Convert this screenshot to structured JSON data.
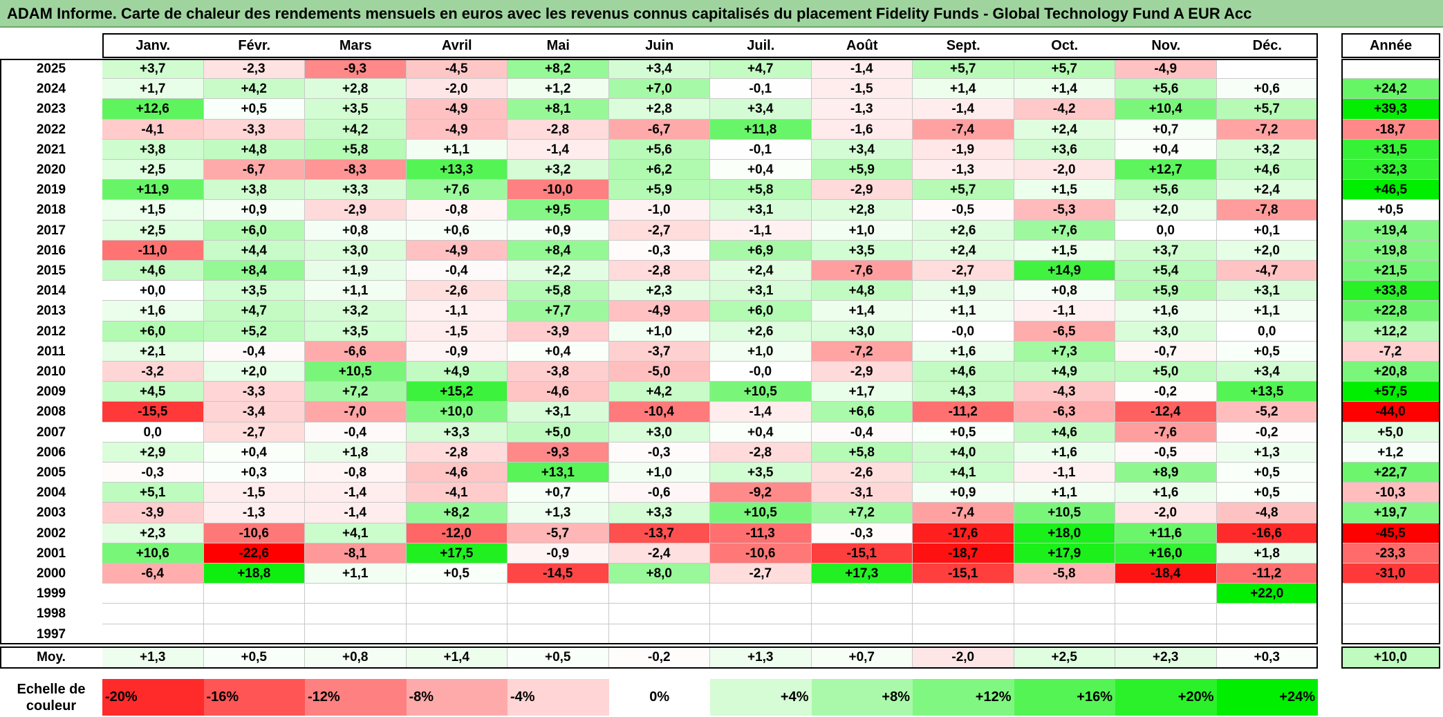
{
  "title": "ADAM Informe. Carte de chaleur des rendements mensuels en euros avec les revenus connus capitalisés du placement Fidelity Funds - Global Technology Fund A EUR Acc",
  "chart_data": {
    "type": "heatmap",
    "months": [
      "Janv.",
      "Févr.",
      "Mars",
      "Avril",
      "Mai",
      "Juin",
      "Juil.",
      "Août",
      "Sept.",
      "Oct.",
      "Nov.",
      "Déc."
    ],
    "year_header": "Année",
    "rows": [
      {
        "year": "2025",
        "m": [
          "+3,7",
          "-2,3",
          "-9,3",
          "-4,5",
          "+8,2",
          "+3,4",
          "+4,7",
          "-1,4",
          "+5,7",
          "+5,7",
          "-4,9",
          ""
        ],
        "y": ""
      },
      {
        "year": "2024",
        "m": [
          "+1,7",
          "+4,2",
          "+2,8",
          "-2,0",
          "+1,2",
          "+7,0",
          "-0,1",
          "-1,5",
          "+1,4",
          "+1,4",
          "+5,6",
          "+0,6"
        ],
        "y": "+24,2"
      },
      {
        "year": "2023",
        "m": [
          "+12,6",
          "+0,5",
          "+3,5",
          "-4,9",
          "+8,1",
          "+2,8",
          "+3,4",
          "-1,3",
          "-1,4",
          "-4,2",
          "+10,4",
          "+5,7"
        ],
        "y": "+39,3"
      },
      {
        "year": "2022",
        "m": [
          "-4,1",
          "-3,3",
          "+4,2",
          "-4,9",
          "-2,8",
          "-6,7",
          "+11,8",
          "-1,6",
          "-7,4",
          "+2,4",
          "+0,7",
          "-7,2"
        ],
        "y": "-18,7"
      },
      {
        "year": "2021",
        "m": [
          "+3,8",
          "+4,8",
          "+5,8",
          "+1,1",
          "-1,4",
          "+5,6",
          "-0,1",
          "+3,4",
          "-1,9",
          "+3,6",
          "+0,4",
          "+3,2"
        ],
        "y": "+31,5"
      },
      {
        "year": "2020",
        "m": [
          "+2,5",
          "-6,7",
          "-8,3",
          "+13,3",
          "+3,2",
          "+6,2",
          "+0,4",
          "+5,9",
          "-1,3",
          "-2,0",
          "+12,7",
          "+4,6"
        ],
        "y": "+32,3"
      },
      {
        "year": "2019",
        "m": [
          "+11,9",
          "+3,8",
          "+3,3",
          "+7,6",
          "-10,0",
          "+5,9",
          "+5,8",
          "-2,9",
          "+5,7",
          "+1,5",
          "+5,6",
          "+2,4"
        ],
        "y": "+46,5"
      },
      {
        "year": "2018",
        "m": [
          "+1,5",
          "+0,9",
          "-2,9",
          "-0,8",
          "+9,5",
          "-1,0",
          "+3,1",
          "+2,8",
          "-0,5",
          "-5,3",
          "+2,0",
          "-7,8"
        ],
        "y": "+0,5"
      },
      {
        "year": "2017",
        "m": [
          "+2,5",
          "+6,0",
          "+0,8",
          "+0,6",
          "+0,9",
          "-2,7",
          "-1,1",
          "+1,0",
          "+2,6",
          "+7,6",
          "0,0",
          "+0,1"
        ],
        "y": "+19,4"
      },
      {
        "year": "2016",
        "m": [
          "-11,0",
          "+4,4",
          "+3,0",
          "-4,9",
          "+8,4",
          "-0,3",
          "+6,9",
          "+3,5",
          "+2,4",
          "+1,5",
          "+3,7",
          "+2,0"
        ],
        "y": "+19,8"
      },
      {
        "year": "2015",
        "m": [
          "+4,6",
          "+8,4",
          "+1,9",
          "-0,4",
          "+2,2",
          "-2,8",
          "+2,4",
          "-7,6",
          "-2,7",
          "+14,9",
          "+5,4",
          "-4,7"
        ],
        "y": "+21,5"
      },
      {
        "year": "2014",
        "m": [
          "+0,0",
          "+3,5",
          "+1,1",
          "-2,6",
          "+5,8",
          "+2,3",
          "+3,1",
          "+4,8",
          "+1,9",
          "+0,8",
          "+5,9",
          "+3,1"
        ],
        "y": "+33,8"
      },
      {
        "year": "2013",
        "m": [
          "+1,6",
          "+4,7",
          "+3,2",
          "-1,1",
          "+7,7",
          "-4,9",
          "+6,0",
          "+1,4",
          "+1,1",
          "-1,1",
          "+1,6",
          "+1,1"
        ],
        "y": "+22,8"
      },
      {
        "year": "2012",
        "m": [
          "+6,0",
          "+5,2",
          "+3,5",
          "-1,5",
          "-3,9",
          "+1,0",
          "+2,6",
          "+3,0",
          "-0,0",
          "-6,5",
          "+3,0",
          "0,0"
        ],
        "y": "+12,2"
      },
      {
        "year": "2011",
        "m": [
          "+2,1",
          "-0,4",
          "-6,6",
          "-0,9",
          "+0,4",
          "-3,7",
          "+1,0",
          "-7,2",
          "+1,6",
          "+7,3",
          "-0,7",
          "+0,5"
        ],
        "y": "-7,2"
      },
      {
        "year": "2010",
        "m": [
          "-3,2",
          "+2,0",
          "+10,5",
          "+4,9",
          "-3,8",
          "-5,0",
          "-0,0",
          "-2,9",
          "+4,6",
          "+4,9",
          "+5,0",
          "+3,4"
        ],
        "y": "+20,8"
      },
      {
        "year": "2009",
        "m": [
          "+4,5",
          "-3,3",
          "+7,2",
          "+15,2",
          "-4,6",
          "+4,2",
          "+10,5",
          "+1,7",
          "+4,3",
          "-4,3",
          "-0,2",
          "+13,5"
        ],
        "y": "+57,5"
      },
      {
        "year": "2008",
        "m": [
          "-15,5",
          "-3,4",
          "-7,0",
          "+10,0",
          "+3,1",
          "-10,4",
          "-1,4",
          "+6,6",
          "-11,2",
          "-6,3",
          "-12,4",
          "-5,2"
        ],
        "y": "-44,0"
      },
      {
        "year": "2007",
        "m": [
          "0,0",
          "-2,7",
          "-0,4",
          "+3,3",
          "+5,0",
          "+3,0",
          "+0,4",
          "-0,4",
          "+0,5",
          "+4,6",
          "-7,6",
          "-0,2"
        ],
        "y": "+5,0"
      },
      {
        "year": "2006",
        "m": [
          "+2,9",
          "+0,4",
          "+1,8",
          "-2,8",
          "-9,3",
          "-0,3",
          "-2,8",
          "+5,8",
          "+4,0",
          "+1,6",
          "-0,5",
          "+1,3"
        ],
        "y": "+1,2"
      },
      {
        "year": "2005",
        "m": [
          "-0,3",
          "+0,3",
          "-0,8",
          "-4,6",
          "+13,1",
          "+1,0",
          "+3,5",
          "-2,6",
          "+4,1",
          "-1,1",
          "+8,9",
          "+0,5"
        ],
        "y": "+22,7"
      },
      {
        "year": "2004",
        "m": [
          "+5,1",
          "-1,5",
          "-1,4",
          "-4,1",
          "+0,7",
          "-0,6",
          "-9,2",
          "-3,1",
          "+0,9",
          "+1,1",
          "+1,6",
          "+0,5"
        ],
        "y": "-10,3"
      },
      {
        "year": "2003",
        "m": [
          "-3,9",
          "-1,3",
          "-1,4",
          "+8,2",
          "+1,3",
          "+3,3",
          "+10,5",
          "+7,2",
          "-7,4",
          "+10,5",
          "-2,0",
          "-4,8"
        ],
        "y": "+19,7"
      },
      {
        "year": "2002",
        "m": [
          "+2,3",
          "-10,6",
          "+4,1",
          "-12,0",
          "-5,7",
          "-13,7",
          "-11,3",
          "-0,3",
          "-17,6",
          "+18,0",
          "+11,6",
          "-16,6"
        ],
        "y": "-45,5"
      },
      {
        "year": "2001",
        "m": [
          "+10,6",
          "-22,6",
          "-8,1",
          "+17,5",
          "-0,9",
          "-2,4",
          "-10,6",
          "-15,1",
          "-18,7",
          "+17,9",
          "+16,0",
          "+1,8"
        ],
        "y": "-23,3"
      },
      {
        "year": "2000",
        "m": [
          "-6,4",
          "+18,8",
          "+1,1",
          "+0,5",
          "-14,5",
          "+8,0",
          "-2,7",
          "+17,3",
          "-15,1",
          "-5,8",
          "-18,4",
          "-11,2"
        ],
        "y": "-31,0"
      },
      {
        "year": "1999",
        "m": [
          "",
          "",
          "",
          "",
          "",
          "",
          "",
          "",
          "",
          "",
          "",
          "+22,0"
        ],
        "y": ""
      },
      {
        "year": "1998",
        "m": [
          "",
          "",
          "",
          "",
          "",
          "",
          "",
          "",
          "",
          "",
          "",
          ""
        ],
        "y": ""
      },
      {
        "year": "1997",
        "m": [
          "",
          "",
          "",
          "",
          "",
          "",
          "",
          "",
          "",
          "",
          "",
          ""
        ],
        "y": ""
      }
    ],
    "average": {
      "label": "Moy.",
      "m": [
        "+1,3",
        "+0,5",
        "+0,8",
        "+1,4",
        "+0,5",
        "-0,2",
        "+1,3",
        "+0,7",
        "-2,0",
        "+2,5",
        "+2,3",
        "+0,3"
      ],
      "y": "+10,0"
    },
    "scale": {
      "label": "Echelle de couleur",
      "items": [
        {
          "label": "-20%",
          "value": -20,
          "align": "left"
        },
        {
          "label": "-16%",
          "value": -16,
          "align": "left"
        },
        {
          "label": "-12%",
          "value": -12,
          "align": "left"
        },
        {
          "label": "-8%",
          "value": -8,
          "align": "left"
        },
        {
          "label": "-4%",
          "value": -4,
          "align": "left"
        },
        {
          "label": "0%",
          "value": 0,
          "align": "center"
        },
        {
          "label": "+4%",
          "value": 4,
          "align": "right"
        },
        {
          "label": "+8%",
          "value": 8,
          "align": "right"
        },
        {
          "label": "+12%",
          "value": 12,
          "align": "right"
        },
        {
          "label": "+16%",
          "value": 16,
          "align": "right"
        },
        {
          "label": "+20%",
          "value": 20,
          "align": "right"
        },
        {
          "label": "+24%",
          "value": 24,
          "align": "right"
        }
      ]
    },
    "colors": {
      "negative_max": "#ff0000",
      "positive_max": "#00ee00",
      "neutral": "#ffffff",
      "title_bg": "#9fd49f"
    }
  }
}
